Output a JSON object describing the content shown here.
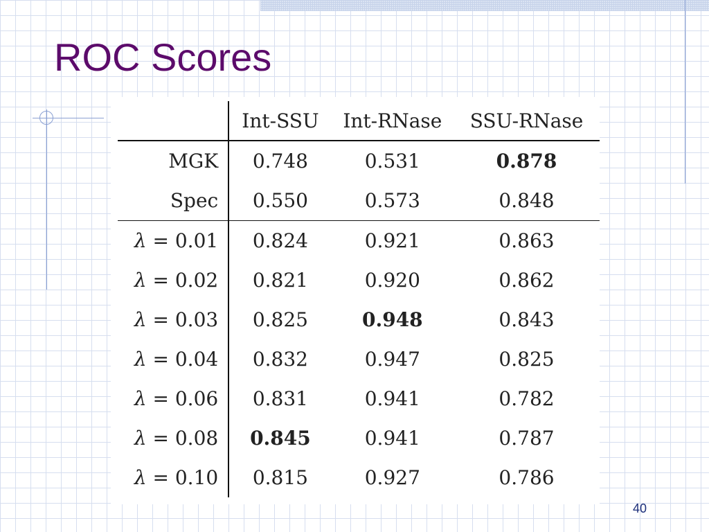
{
  "slide": {
    "title": "ROC Scores",
    "page_number": "40"
  },
  "table": {
    "columns": [
      "",
      "Int-SSU",
      "Int-RNase",
      "SSU-RNase"
    ],
    "rows": [
      {
        "label": "MGK",
        "values": [
          "0.748",
          "0.531",
          "0.878"
        ],
        "bold": [
          false,
          false,
          true
        ]
      },
      {
        "label": "Spec",
        "values": [
          "0.550",
          "0.573",
          "0.848"
        ],
        "bold": [
          false,
          false,
          false
        ]
      },
      {
        "lambda": "λ",
        "op": " = ",
        "param": "0.01",
        "values": [
          "0.824",
          "0.921",
          "0.863"
        ],
        "bold": [
          false,
          false,
          false
        ]
      },
      {
        "lambda": "λ",
        "op": " = ",
        "param": "0.02",
        "values": [
          "0.821",
          "0.920",
          "0.862"
        ],
        "bold": [
          false,
          false,
          false
        ]
      },
      {
        "lambda": "λ",
        "op": " = ",
        "param": "0.03",
        "values": [
          "0.825",
          "0.948",
          "0.843"
        ],
        "bold": [
          false,
          true,
          false
        ]
      },
      {
        "lambda": "λ",
        "op": " = ",
        "param": "0.04",
        "values": [
          "0.832",
          "0.947",
          "0.825"
        ],
        "bold": [
          false,
          false,
          false
        ]
      },
      {
        "lambda": "λ",
        "op": " = ",
        "param": "0.06",
        "values": [
          "0.831",
          "0.941",
          "0.782"
        ],
        "bold": [
          false,
          false,
          false
        ]
      },
      {
        "lambda": "λ",
        "op": " = ",
        "param": "0.08",
        "values": [
          "0.845",
          "0.941",
          "0.787"
        ],
        "bold": [
          true,
          false,
          false
        ]
      },
      {
        "lambda": "λ",
        "op": " = ",
        "param": "0.10",
        "values": [
          "0.815",
          "0.927",
          "0.786"
        ],
        "bold": [
          false,
          false,
          false
        ]
      }
    ]
  }
}
